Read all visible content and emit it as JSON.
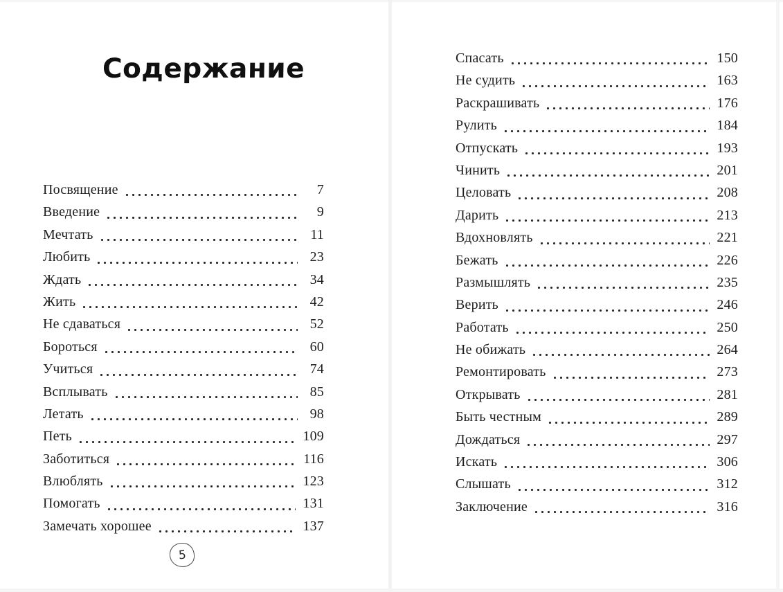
{
  "left_page": {
    "title": "Содержание",
    "entries": [
      {
        "label": "Посвящение",
        "page": "7"
      },
      {
        "label": "Введение",
        "page": "9"
      },
      {
        "label": "Мечтать",
        "page": "11"
      },
      {
        "label": "Любить",
        "page": "23"
      },
      {
        "label": "Ждать",
        "page": "34"
      },
      {
        "label": "Жить",
        "page": "42"
      },
      {
        "label": "Не сдаваться",
        "page": "52"
      },
      {
        "label": "Бороться",
        "page": "60"
      },
      {
        "label": "Учиться",
        "page": "74"
      },
      {
        "label": "Всплывать",
        "page": "85"
      },
      {
        "label": "Летать",
        "page": "98"
      },
      {
        "label": "Петь",
        "page": "109"
      },
      {
        "label": "Заботиться",
        "page": "116"
      },
      {
        "label": "Влюблять",
        "page": "123"
      },
      {
        "label": "Помогать",
        "page": "131"
      },
      {
        "label": "Замечать хорошее",
        "page": "137"
      }
    ],
    "folio": "5"
  },
  "right_page": {
    "entries": [
      {
        "label": "Спасать",
        "page": "150"
      },
      {
        "label": "Не судить",
        "page": "163"
      },
      {
        "label": "Раскрашивать",
        "page": "176"
      },
      {
        "label": "Рулить",
        "page": "184"
      },
      {
        "label": "Отпускать",
        "page": "193"
      },
      {
        "label": "Чинить",
        "page": "201"
      },
      {
        "label": "Целовать",
        "page": "208"
      },
      {
        "label": "Дарить",
        "page": "213"
      },
      {
        "label": "Вдохновлять",
        "page": "221"
      },
      {
        "label": "Бежать",
        "page": "226"
      },
      {
        "label": "Размышлять",
        "page": "235"
      },
      {
        "label": "Верить",
        "page": "246"
      },
      {
        "label": "Работать",
        "page": "250"
      },
      {
        "label": "Не обижать",
        "page": "264"
      },
      {
        "label": "Ремонтировать",
        "page": "273"
      },
      {
        "label": "Открывать",
        "page": "281"
      },
      {
        "label": "Быть честным",
        "page": "289"
      },
      {
        "label": "Дождаться",
        "page": "297"
      },
      {
        "label": "Искать",
        "page": "306"
      },
      {
        "label": "Слышать",
        "page": "312"
      },
      {
        "label": "Заключение",
        "page": "316"
      }
    ]
  },
  "colors": {
    "text": "#1e1e1e",
    "dot_leader": "#272727",
    "gutter_line": "#f2f2f2",
    "page_background": "#ffffff"
  }
}
